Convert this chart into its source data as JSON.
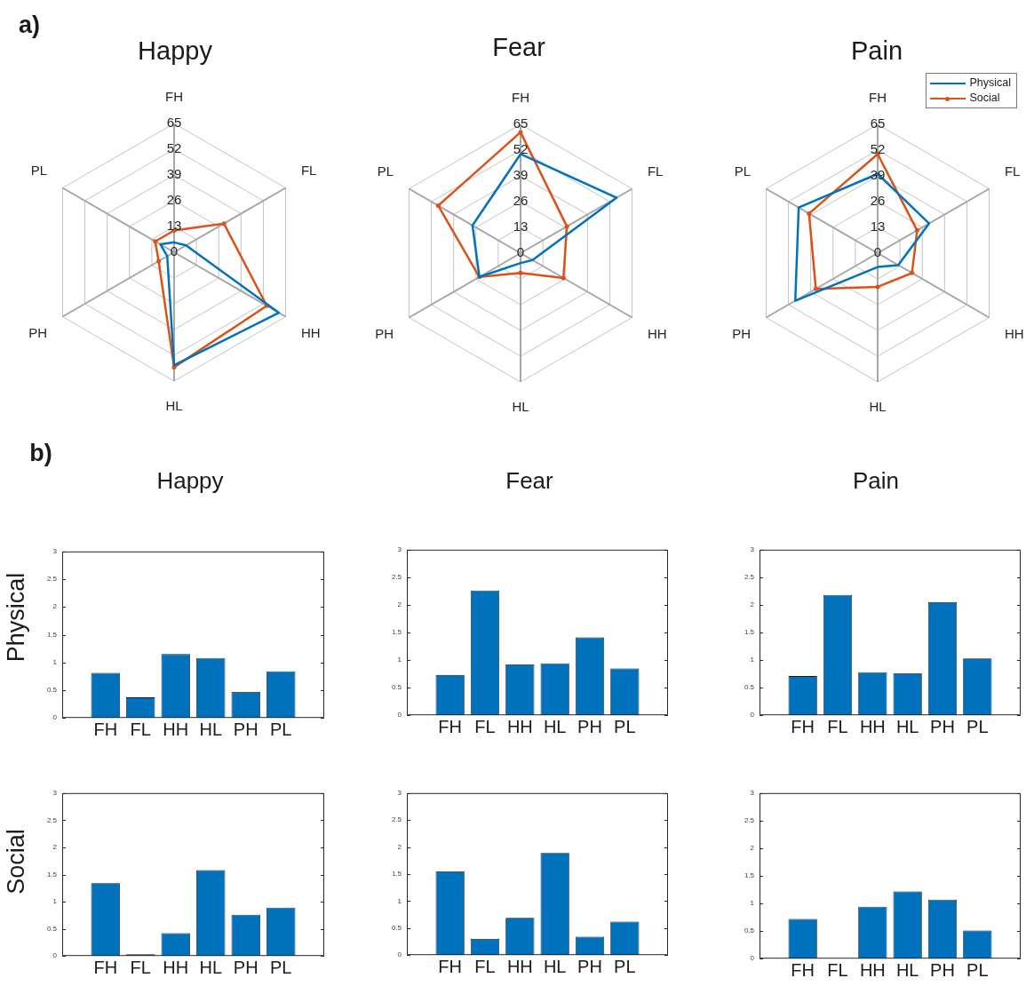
{
  "chart_data": [
    {
      "type": "radar",
      "title": "Happy",
      "annotations": [
        "a)"
      ],
      "categories": [
        "FH",
        "FL",
        "HH",
        "HL",
        "PH",
        "PL"
      ],
      "ylim": [
        0,
        65
      ],
      "yticks": [
        0,
        13,
        26,
        39,
        52,
        65
      ],
      "grid": true,
      "series": [
        {
          "color": "#0072bd",
          "values": [
            5,
            7,
            61,
            57,
            4,
            8
          ]
        },
        {
          "color": "#d95319",
          "marker": "circle",
          "values": [
            11,
            29,
            54,
            58,
            9,
            11
          ]
        }
      ]
    },
    {
      "type": "radar",
      "title": "Fear",
      "categories": [
        "FH",
        "FL",
        "HH",
        "HL",
        "PH",
        "PL"
      ],
      "ylim": [
        0,
        65
      ],
      "yticks": [
        0,
        13,
        26,
        39,
        52,
        65
      ],
      "grid": true,
      "series": [
        {
          "color": "#0072bd",
          "values": [
            50,
            56,
            7,
            5,
            24,
            28
          ]
        },
        {
          "color": "#d95319",
          "marker": "circle",
          "values": [
            61,
            27,
            25,
            10,
            24,
            48
          ]
        }
      ]
    },
    {
      "type": "radar",
      "title": "Pain",
      "categories": [
        "FH",
        "FL",
        "HH",
        "HL",
        "PH",
        "PL"
      ],
      "ylim": [
        0,
        65
      ],
      "yticks": [
        0,
        13,
        26,
        39,
        52,
        65
      ],
      "grid": true,
      "legend": "top right",
      "series": [
        {
          "name": "Physical",
          "color": "#0072bd",
          "values": [
            40,
            30,
            12,
            7,
            48,
            46
          ]
        },
        {
          "name": "Social",
          "color": "#d95319",
          "marker": "circle",
          "values": [
            50,
            23,
            20,
            17,
            36,
            40
          ]
        }
      ]
    },
    {
      "type": "bar",
      "title": "Happy",
      "ylabel": "Physical",
      "annotations": [
        "b)"
      ],
      "categories": [
        "FH",
        "FL",
        "HH",
        "HL",
        "PH",
        "PL"
      ],
      "values": [
        0.81,
        0.37,
        1.15,
        1.08,
        0.47,
        0.84
      ],
      "color": "#0072bd",
      "ylim": [
        0,
        3
      ],
      "yticks": [
        0,
        0.5,
        1,
        1.5,
        2,
        2.5,
        3
      ]
    },
    {
      "type": "bar",
      "title": "Fear",
      "categories": [
        "FH",
        "FL",
        "HH",
        "HL",
        "PH",
        "PL"
      ],
      "values": [
        0.73,
        2.26,
        0.92,
        0.94,
        1.41,
        0.85
      ],
      "color": "#0072bd",
      "ylim": [
        0,
        3
      ],
      "yticks": [
        0,
        0.5,
        1,
        1.5,
        2,
        2.5,
        3
      ]
    },
    {
      "type": "bar",
      "title": "Pain",
      "categories": [
        "FH",
        "FL",
        "HH",
        "HL",
        "PH",
        "PL"
      ],
      "values": [
        0.71,
        2.18,
        0.78,
        0.76,
        2.05,
        1.03
      ],
      "color": "#0072bd",
      "ylim": [
        0,
        3
      ],
      "yticks": [
        0,
        0.5,
        1,
        1.5,
        2,
        2.5,
        3
      ]
    },
    {
      "type": "bar",
      "ylabel": "Social",
      "categories": [
        "FH",
        "FL",
        "HH",
        "HL",
        "PH",
        "PL"
      ],
      "values": [
        1.34,
        0.03,
        0.42,
        1.58,
        0.76,
        0.89
      ],
      "color": "#0072bd",
      "ylim": [
        0,
        3
      ],
      "yticks": [
        0,
        0.5,
        1,
        1.5,
        2,
        2.5,
        3
      ]
    },
    {
      "type": "bar",
      "categories": [
        "FH",
        "FL",
        "HH",
        "HL",
        "PH",
        "PL"
      ],
      "values": [
        1.55,
        0.3,
        0.69,
        1.89,
        0.34,
        0.62
      ],
      "color": "#0072bd",
      "ylim": [
        0,
        3
      ],
      "yticks": [
        0,
        0.5,
        1,
        1.5,
        2,
        2.5,
        3
      ]
    },
    {
      "type": "bar",
      "categories": [
        "FH",
        "FL",
        "HH",
        "HL",
        "PH",
        "PL"
      ],
      "values": [
        0.72,
        0,
        0.94,
        1.22,
        1.07,
        0.51
      ],
      "color": "#0072bd",
      "ylim": [
        0,
        3
      ],
      "yticks": [
        0,
        0.5,
        1,
        1.5,
        2,
        2.5,
        3
      ]
    }
  ]
}
